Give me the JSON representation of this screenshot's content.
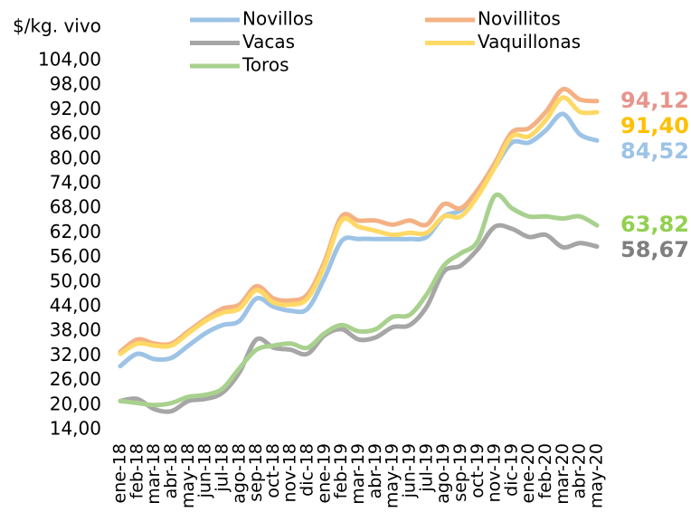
{
  "chart_data": {
    "type": "line",
    "y_label": "$/kg. vivo",
    "categories": [
      "ene-18",
      "feb-18",
      "mar-18",
      "abr-18",
      "may-18",
      "jun-18",
      "jul-18",
      "ago-18",
      "sep-18",
      "oct-18",
      "nov-18",
      "dic-18",
      "ene-19",
      "feb-19",
      "mar-19",
      "abr-19",
      "may-19",
      "jun-19",
      "jul-19",
      "ago-19",
      "sep-19",
      "oct-19",
      "nov-19",
      "dic-19",
      "ene-20",
      "feb-20",
      "mar-20",
      "abr-20",
      "may-20"
    ],
    "ylim": [
      14,
      104
    ],
    "yticks": [
      {
        "value": 14,
        "label": "14,00"
      },
      {
        "value": 20,
        "label": "20,00"
      },
      {
        "value": 26,
        "label": "26,00"
      },
      {
        "value": 32,
        "label": "32,00"
      },
      {
        "value": 38,
        "label": "38,00"
      },
      {
        "value": 44,
        "label": "44,00"
      },
      {
        "value": 50,
        "label": "50,00"
      },
      {
        "value": 56,
        "label": "56,00"
      },
      {
        "value": 62,
        "label": "62,00"
      },
      {
        "value": 68,
        "label": "68,00"
      },
      {
        "value": 74,
        "label": "74,00"
      },
      {
        "value": 80,
        "label": "80,00"
      },
      {
        "value": 86,
        "label": "86,00"
      },
      {
        "value": 92,
        "label": "92,00"
      },
      {
        "value": 98,
        "label": "98,00"
      },
      {
        "value": 104,
        "label": "104,00"
      }
    ],
    "grid": false,
    "series": [
      {
        "name": "Novillos",
        "color": "#9dc3e6",
        "label_color": "#9dc3e6",
        "values": [
          29.5,
          32.5,
          31.2,
          31.5,
          34.5,
          37.5,
          39.5,
          40.5,
          46,
          44,
          43,
          43.5,
          51,
          60,
          60.5,
          60.5,
          60.5,
          60.5,
          61,
          66,
          67.5,
          72,
          78,
          84,
          84,
          87,
          91,
          86,
          84.52
        ],
        "value_labels": {
          "28": "84,52"
        }
      },
      {
        "name": "Novillitos",
        "color": "#f4b183",
        "label_color": "#e6958c",
        "values": [
          33,
          36,
          35,
          35,
          38,
          41,
          43.5,
          44.5,
          49,
          46,
          45.5,
          47,
          55,
          66,
          65,
          65,
          64,
          65,
          64,
          69,
          68,
          72.5,
          79,
          86.5,
          87.5,
          91.5,
          97,
          94.5,
          94.12
        ],
        "value_labels": {
          "28": "94,12"
        }
      },
      {
        "name": "Vacas",
        "color": "#a6a6a6",
        "label_color": "#7f7f7f",
        "values": [
          21,
          21.5,
          19,
          18.5,
          21,
          21.5,
          23,
          28,
          36,
          34,
          33.5,
          32.5,
          37,
          38.5,
          36,
          36.5,
          39,
          39.5,
          44,
          52.5,
          54,
          58,
          63.5,
          63,
          61,
          61.5,
          58.5,
          59.5,
          58.67
        ],
        "value_labels": {
          "28": "58,67"
        }
      },
      {
        "name": "Vaquillonas",
        "color": "#ffd966",
        "label_color": "#ffc000",
        "values": [
          32.5,
          35,
          34.5,
          34.5,
          37.5,
          40.5,
          42.5,
          43.5,
          48,
          45,
          44.5,
          46,
          54,
          65,
          63.5,
          62.5,
          61.5,
          62,
          62,
          66,
          66,
          71,
          78,
          85.5,
          85.5,
          89.5,
          95,
          91.5,
          91.4
        ],
        "value_labels": {
          "28": "91,40"
        }
      },
      {
        "name": "Toros",
        "color": "#a9d18e",
        "label_color": "#92d050",
        "values": [
          21,
          20.5,
          20,
          20.5,
          22,
          22.5,
          24,
          29,
          33.5,
          34.5,
          35,
          34,
          37.5,
          39.5,
          38,
          38.5,
          41.5,
          42,
          47,
          54,
          57,
          60,
          71,
          68,
          66,
          66,
          65.5,
          66,
          63.82
        ],
        "value_labels": {
          "28": "63,82"
        }
      }
    ]
  }
}
